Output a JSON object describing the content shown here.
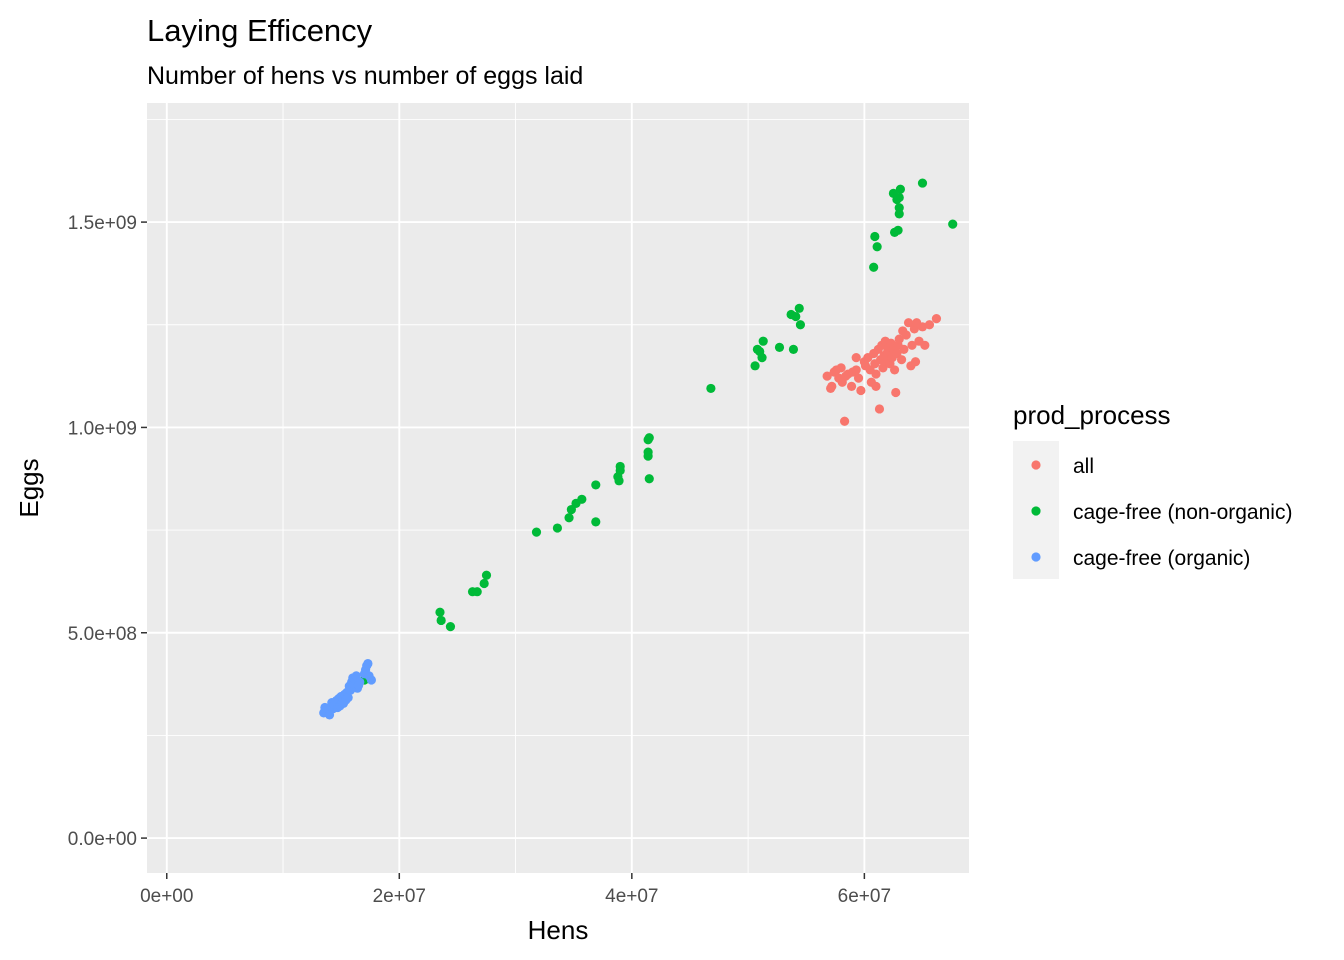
{
  "chart_data": {
    "type": "scatter",
    "title": "Laying Efficency",
    "subtitle": "Number of hens vs number of eggs laid",
    "xlabel": "Hens",
    "ylabel": "Eggs",
    "xlim": [
      -1700000,
      69000000
    ],
    "ylim": [
      -85000000,
      1790000000
    ],
    "x_ticks": [
      0,
      20000000,
      40000000,
      60000000
    ],
    "x_tick_labels": [
      "0e+00",
      "2e+07",
      "4e+07",
      "6e+07"
    ],
    "y_ticks": [
      0,
      500000000,
      1000000000,
      1500000000
    ],
    "y_tick_labels": [
      "0.0e+00",
      "5.0e+08",
      "1.0e+09",
      "1.5e+09"
    ],
    "grid": true,
    "panel_background": "#ebebeb",
    "legend": {
      "title": "prod_process",
      "position": "right"
    },
    "series": [
      {
        "name": "all",
        "color": "#F8766D",
        "points": [
          [
            56800000,
            1125000000
          ],
          [
            57100000,
            1095000000
          ],
          [
            57200000,
            1100000000
          ],
          [
            57400000,
            1135000000
          ],
          [
            57600000,
            1140000000
          ],
          [
            57800000,
            1120000000
          ],
          [
            58000000,
            1145000000
          ],
          [
            58100000,
            1110000000
          ],
          [
            58300000,
            1015000000
          ],
          [
            58400000,
            1125000000
          ],
          [
            58600000,
            1130000000
          ],
          [
            58900000,
            1100000000
          ],
          [
            59000000,
            1135000000
          ],
          [
            59300000,
            1140000000
          ],
          [
            59500000,
            1120000000
          ],
          [
            59700000,
            1090000000
          ],
          [
            60000000,
            1160000000
          ],
          [
            60100000,
            1150000000
          ],
          [
            60300000,
            1170000000
          ],
          [
            60500000,
            1140000000
          ],
          [
            60600000,
            1110000000
          ],
          [
            60800000,
            1180000000
          ],
          [
            60900000,
            1155000000
          ],
          [
            61000000,
            1130000000
          ],
          [
            61200000,
            1190000000
          ],
          [
            61300000,
            1045000000
          ],
          [
            61400000,
            1165000000
          ],
          [
            61500000,
            1200000000
          ],
          [
            61600000,
            1145000000
          ],
          [
            61700000,
            1175000000
          ],
          [
            61800000,
            1210000000
          ],
          [
            61900000,
            1160000000
          ],
          [
            62000000,
            1185000000
          ],
          [
            62100000,
            1195000000
          ],
          [
            62200000,
            1155000000
          ],
          [
            62300000,
            1205000000
          ],
          [
            62400000,
            1170000000
          ],
          [
            62500000,
            1190000000
          ],
          [
            62600000,
            1140000000
          ],
          [
            62700000,
            1085000000
          ],
          [
            62800000,
            1180000000
          ],
          [
            62900000,
            1200000000
          ],
          [
            63000000,
            1215000000
          ],
          [
            63200000,
            1165000000
          ],
          [
            63400000,
            1190000000
          ],
          [
            63600000,
            1225000000
          ],
          [
            63800000,
            1255000000
          ],
          [
            64000000,
            1150000000
          ],
          [
            64100000,
            1200000000
          ],
          [
            64300000,
            1240000000
          ],
          [
            64400000,
            1160000000
          ],
          [
            64500000,
            1255000000
          ],
          [
            64700000,
            1210000000
          ],
          [
            65000000,
            1245000000
          ],
          [
            65200000,
            1200000000
          ],
          [
            65600000,
            1250000000
          ],
          [
            66200000,
            1265000000
          ],
          [
            59300000,
            1170000000
          ],
          [
            61000000,
            1100000000
          ],
          [
            63300000,
            1235000000
          ]
        ]
      },
      {
        "name": "cage-free (non-organic)",
        "color": "#00BA38",
        "points": [
          [
            17000000,
            385000000
          ],
          [
            23500000,
            550000000
          ],
          [
            23600000,
            530000000
          ],
          [
            24400000,
            515000000
          ],
          [
            26300000,
            600000000
          ],
          [
            26700000,
            600000000
          ],
          [
            27300000,
            620000000
          ],
          [
            27500000,
            640000000
          ],
          [
            31800000,
            745000000
          ],
          [
            33600000,
            755000000
          ],
          [
            34600000,
            780000000
          ],
          [
            34800000,
            800000000
          ],
          [
            35200000,
            815000000
          ],
          [
            35700000,
            825000000
          ],
          [
            36900000,
            860000000
          ],
          [
            36900000,
            770000000
          ],
          [
            38800000,
            880000000
          ],
          [
            38900000,
            870000000
          ],
          [
            39000000,
            905000000
          ],
          [
            39000000,
            895000000
          ],
          [
            41400000,
            940000000
          ],
          [
            41400000,
            930000000
          ],
          [
            41400000,
            970000000
          ],
          [
            41500000,
            975000000
          ],
          [
            41500000,
            875000000
          ],
          [
            46800000,
            1095000000
          ],
          [
            50600000,
            1150000000
          ],
          [
            50800000,
            1190000000
          ],
          [
            51000000,
            1185000000
          ],
          [
            51200000,
            1170000000
          ],
          [
            51300000,
            1210000000
          ],
          [
            52700000,
            1195000000
          ],
          [
            53700000,
            1275000000
          ],
          [
            53900000,
            1190000000
          ],
          [
            54100000,
            1270000000
          ],
          [
            54400000,
            1290000000
          ],
          [
            54500000,
            1250000000
          ],
          [
            60800000,
            1390000000
          ],
          [
            60900000,
            1465000000
          ],
          [
            61100000,
            1440000000
          ],
          [
            62500000,
            1570000000
          ],
          [
            62600000,
            1475000000
          ],
          [
            62800000,
            1555000000
          ],
          [
            62900000,
            1480000000
          ],
          [
            63000000,
            1535000000
          ],
          [
            63000000,
            1520000000
          ],
          [
            63100000,
            1580000000
          ],
          [
            65000000,
            1595000000
          ],
          [
            67600000,
            1495000000
          ],
          [
            63000000,
            1560000000
          ]
        ]
      },
      {
        "name": "cage-free (organic)",
        "color": "#619CFF",
        "points": [
          [
            13500000,
            305000000
          ],
          [
            13700000,
            312000000
          ],
          [
            13900000,
            308000000
          ],
          [
            14000000,
            300000000
          ],
          [
            14100000,
            320000000
          ],
          [
            14200000,
            330000000
          ],
          [
            14300000,
            315000000
          ],
          [
            14400000,
            325000000
          ],
          [
            14600000,
            335000000
          ],
          [
            14700000,
            318000000
          ],
          [
            14800000,
            340000000
          ],
          [
            14900000,
            322000000
          ],
          [
            15000000,
            345000000
          ],
          [
            15100000,
            330000000
          ],
          [
            15300000,
            350000000
          ],
          [
            15400000,
            336000000
          ],
          [
            15500000,
            355000000
          ],
          [
            15600000,
            342000000
          ],
          [
            15700000,
            370000000
          ],
          [
            15800000,
            360000000
          ],
          [
            15900000,
            380000000
          ],
          [
            16000000,
            390000000
          ],
          [
            16100000,
            375000000
          ],
          [
            16200000,
            385000000
          ],
          [
            16300000,
            395000000
          ],
          [
            16400000,
            365000000
          ],
          [
            16600000,
            380000000
          ],
          [
            17000000,
            400000000
          ],
          [
            17100000,
            410000000
          ],
          [
            17200000,
            420000000
          ],
          [
            17300000,
            425000000
          ],
          [
            17400000,
            395000000
          ],
          [
            17600000,
            385000000
          ],
          [
            13600000,
            318000000
          ],
          [
            15200000,
            328000000
          ],
          [
            16500000,
            372000000
          ]
        ]
      }
    ]
  }
}
